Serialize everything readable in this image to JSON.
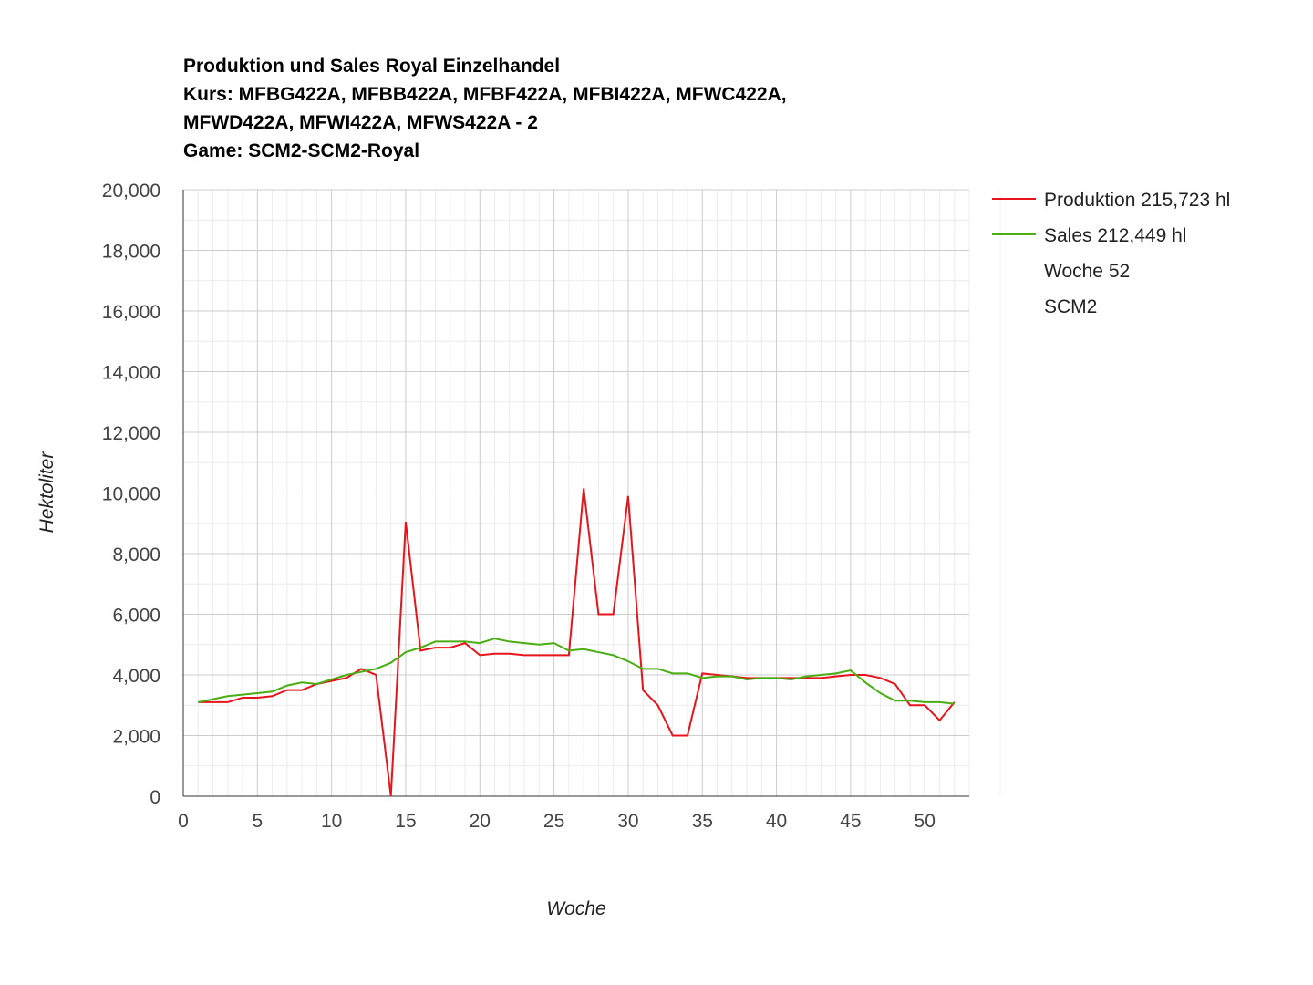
{
  "chart_data": {
    "type": "line",
    "title_lines": [
      "Produktion und Sales Royal Einzelhandel",
      "Kurs: MFBG422A, MFBB422A, MFBF422A, MFBI422A, MFWC422A,",
      "MFWD422A, MFWI422A, MFWS422A - 2",
      "Game: SCM2-SCM2-Royal"
    ],
    "xlabel": "Woche",
    "ylabel": "Hektoliter",
    "xlim": [
      0,
      53
    ],
    "ylim": [
      0,
      20000
    ],
    "x_ticks": [
      0,
      5,
      10,
      15,
      20,
      25,
      30,
      35,
      40,
      45,
      50
    ],
    "y_ticks": [
      0,
      2000,
      4000,
      6000,
      8000,
      10000,
      12000,
      14000,
      16000,
      18000,
      20000
    ],
    "y_tick_labels": [
      "0",
      "2,000",
      "4,000",
      "6,000",
      "8,000",
      "10,000",
      "12,000",
      "14,000",
      "16,000",
      "18,000",
      "20,000"
    ],
    "grid": true,
    "legend_position": "right",
    "x": [
      1,
      2,
      3,
      4,
      5,
      6,
      7,
      8,
      9,
      10,
      11,
      12,
      13,
      14,
      15,
      16,
      17,
      18,
      19,
      20,
      21,
      22,
      23,
      24,
      25,
      26,
      27,
      28,
      29,
      30,
      31,
      32,
      33,
      34,
      35,
      36,
      37,
      38,
      39,
      40,
      41,
      42,
      43,
      44,
      45,
      46,
      47,
      48,
      49,
      50,
      51,
      52
    ],
    "series": [
      {
        "name": "Produktion 215,723 hl",
        "color": "#e8141b",
        "values": [
          3100,
          3100,
          3100,
          3250,
          3250,
          3300,
          3500,
          3500,
          3700,
          3800,
          3900,
          4200,
          4000,
          0,
          9050,
          4800,
          4900,
          4900,
          5050,
          4650,
          4700,
          4700,
          4650,
          4650,
          4650,
          4650,
          10150,
          6000,
          6000,
          9900,
          3500,
          3000,
          2000,
          2000,
          4050,
          4000,
          3950,
          3900,
          3900,
          3900,
          3900,
          3900,
          3900,
          3950,
          4000,
          4000,
          3900,
          3700,
          3000,
          3000,
          2500,
          3100
        ]
      },
      {
        "name": "Sales 212,449 hl",
        "color": "#4aad12",
        "values": [
          3100,
          3200,
          3300,
          3350,
          3400,
          3450,
          3650,
          3750,
          3700,
          3850,
          4000,
          4100,
          4200,
          4400,
          4750,
          4900,
          5100,
          5100,
          5100,
          5050,
          5200,
          5100,
          5050,
          5000,
          5050,
          4800,
          4850,
          4750,
          4650,
          4450,
          4200,
          4200,
          4050,
          4050,
          3900,
          3950,
          3950,
          3850,
          3900,
          3900,
          3850,
          3950,
          4000,
          4050,
          4150,
          3750,
          3400,
          3150,
          3150,
          3100,
          3100,
          3050
        ]
      }
    ],
    "legend_extra": [
      "Woche 52",
      "SCM2"
    ]
  }
}
